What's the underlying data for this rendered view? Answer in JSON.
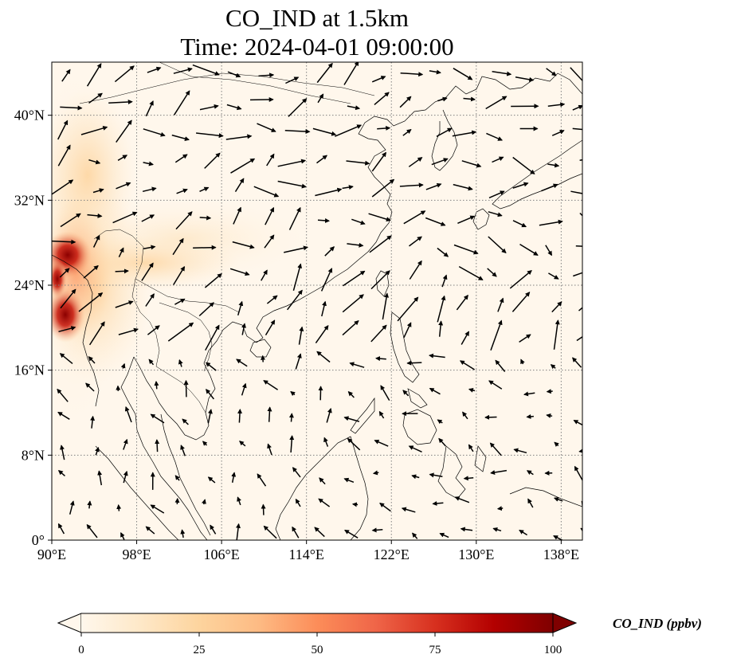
{
  "title": {
    "line1": "CO_IND at 1.5km",
    "line2": "Time: 2024-04-01 09:00:00"
  },
  "map": {
    "variable": "CO_IND",
    "level": "1.5km",
    "projection": "PlateCarree",
    "extent": {
      "lon_min": 90,
      "lon_max": 140,
      "lat_min": 0,
      "lat_max": 45
    },
    "gridlines": "dotted",
    "colormap": "OrRd",
    "lon_ticks": [
      {
        "value": 90,
        "label": "90°E"
      },
      {
        "value": 98,
        "label": "98°E"
      },
      {
        "value": 106,
        "label": "106°E"
      },
      {
        "value": 114,
        "label": "114°E"
      },
      {
        "value": 122,
        "label": "122°E"
      },
      {
        "value": 130,
        "label": "130°E"
      },
      {
        "value": 138,
        "label": "138°E"
      }
    ],
    "lat_ticks": [
      {
        "value": 0,
        "label": "0°"
      },
      {
        "value": 8,
        "label": "8°N"
      },
      {
        "value": 16,
        "label": "16°N"
      },
      {
        "value": 24,
        "label": "24°N"
      },
      {
        "value": 32,
        "label": "32°N"
      },
      {
        "value": 40,
        "label": "40°N"
      }
    ]
  },
  "colorbar": {
    "label": "CO_IND (ppbv)",
    "min": 0,
    "max": 100,
    "extend": "both",
    "ticks": [
      {
        "value": 0,
        "label": "0"
      },
      {
        "value": 25,
        "label": "25"
      },
      {
        "value": 50,
        "label": "50"
      },
      {
        "value": 75,
        "label": "75"
      },
      {
        "value": 100,
        "label": "100"
      }
    ],
    "colors": [
      "#fff7ec",
      "#fee8c8",
      "#fdd49e",
      "#fdbb84",
      "#fc8d59",
      "#ef6548",
      "#d7301f",
      "#b30000",
      "#7f0000"
    ]
  }
}
